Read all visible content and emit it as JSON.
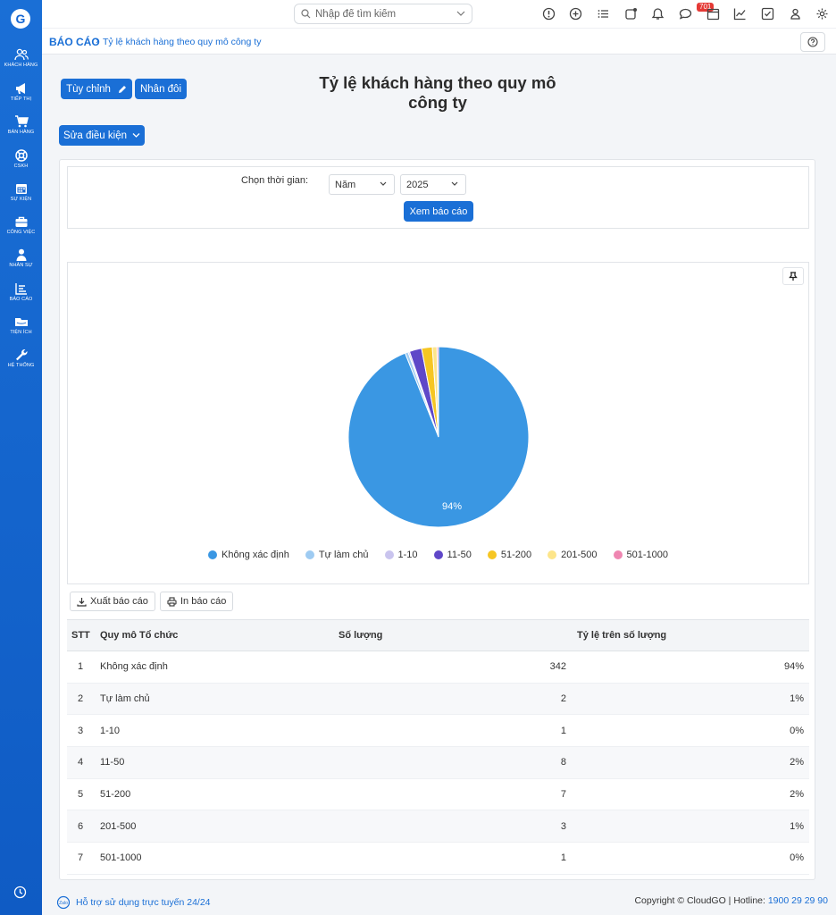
{
  "sidebar": {
    "items": [
      {
        "label": "Khách hàng",
        "icon": "customers-icon"
      },
      {
        "label": "Tiếp thị",
        "icon": "megaphone-icon"
      },
      {
        "label": "Bán hàng",
        "icon": "cart-icon"
      },
      {
        "label": "CSKH",
        "icon": "lifebuoy-icon"
      },
      {
        "label": "Sự kiện",
        "icon": "calendar-icon"
      },
      {
        "label": "Công việc",
        "icon": "briefcase-icon"
      },
      {
        "label": "Nhân sự",
        "icon": "person-icon"
      },
      {
        "label": "Báo cáo",
        "icon": "report-icon"
      },
      {
        "label": "Tiện ích",
        "icon": "utilities-icon"
      },
      {
        "label": "Hệ thống",
        "icon": "wrench-icon"
      }
    ]
  },
  "topbar": {
    "search_placeholder": "Nhập để tìm kiếm",
    "notification_count": "701"
  },
  "breadcrumb": {
    "root": "BÁO CÁO",
    "current": "Tỷ lệ khách hàng theo quy mô công ty"
  },
  "toolbar": {
    "customize_label": "Tùy chỉnh",
    "duplicate_label": "Nhân đôi",
    "edit_conditions_label": "Sửa điều kiện"
  },
  "report": {
    "title_line1": "Tỷ lệ khách hàng theo quy mô",
    "title_line2": "công ty"
  },
  "filter": {
    "time_label": "Chọn thời gian:",
    "period_value": "Năm",
    "year_value": "2025",
    "view_button": "Xem báo cáo"
  },
  "chart_data": {
    "type": "pie",
    "categories": [
      "Không xác định",
      "Tự làm chủ",
      "1-10",
      "11-50",
      "51-200",
      "201-500",
      "501-1000"
    ],
    "values": [
      342,
      2,
      1,
      8,
      7,
      3,
      1
    ],
    "colors": [
      "#3a97e3",
      "#9ecbf2",
      "#c9c4ee",
      "#5f47c8",
      "#f6c623",
      "#fde58a",
      "#ef86b1"
    ],
    "data_labels": [
      "94%"
    ],
    "legend_position": "bottom"
  },
  "actions": {
    "export_label": "Xuất báo cáo",
    "print_label": "In báo cáo"
  },
  "table": {
    "headers": [
      "STT",
      "Quy mô Tổ chức",
      "Số lượng",
      "Tỷ lệ trên số lượng"
    ],
    "rows": [
      {
        "stt": "1",
        "name": "Không xác định",
        "count": "342",
        "ratio": "94%"
      },
      {
        "stt": "2",
        "name": "Tự làm chủ",
        "count": "2",
        "ratio": "1%"
      },
      {
        "stt": "3",
        "name": "1-10",
        "count": "1",
        "ratio": "0%"
      },
      {
        "stt": "4",
        "name": "11-50",
        "count": "8",
        "ratio": "2%"
      },
      {
        "stt": "5",
        "name": "51-200",
        "count": "7",
        "ratio": "2%"
      },
      {
        "stt": "6",
        "name": "201-500",
        "count": "3",
        "ratio": "1%"
      },
      {
        "stt": "7",
        "name": "501-1000",
        "count": "1",
        "ratio": "0%"
      }
    ]
  },
  "footer": {
    "support_text": "Hỗ trợ sử dụng trực tuyến 24/24",
    "copyright": "Copyright © CloudGO",
    "hotline_label": "Hotline:",
    "hotline_number": "1900 29 29 90"
  }
}
